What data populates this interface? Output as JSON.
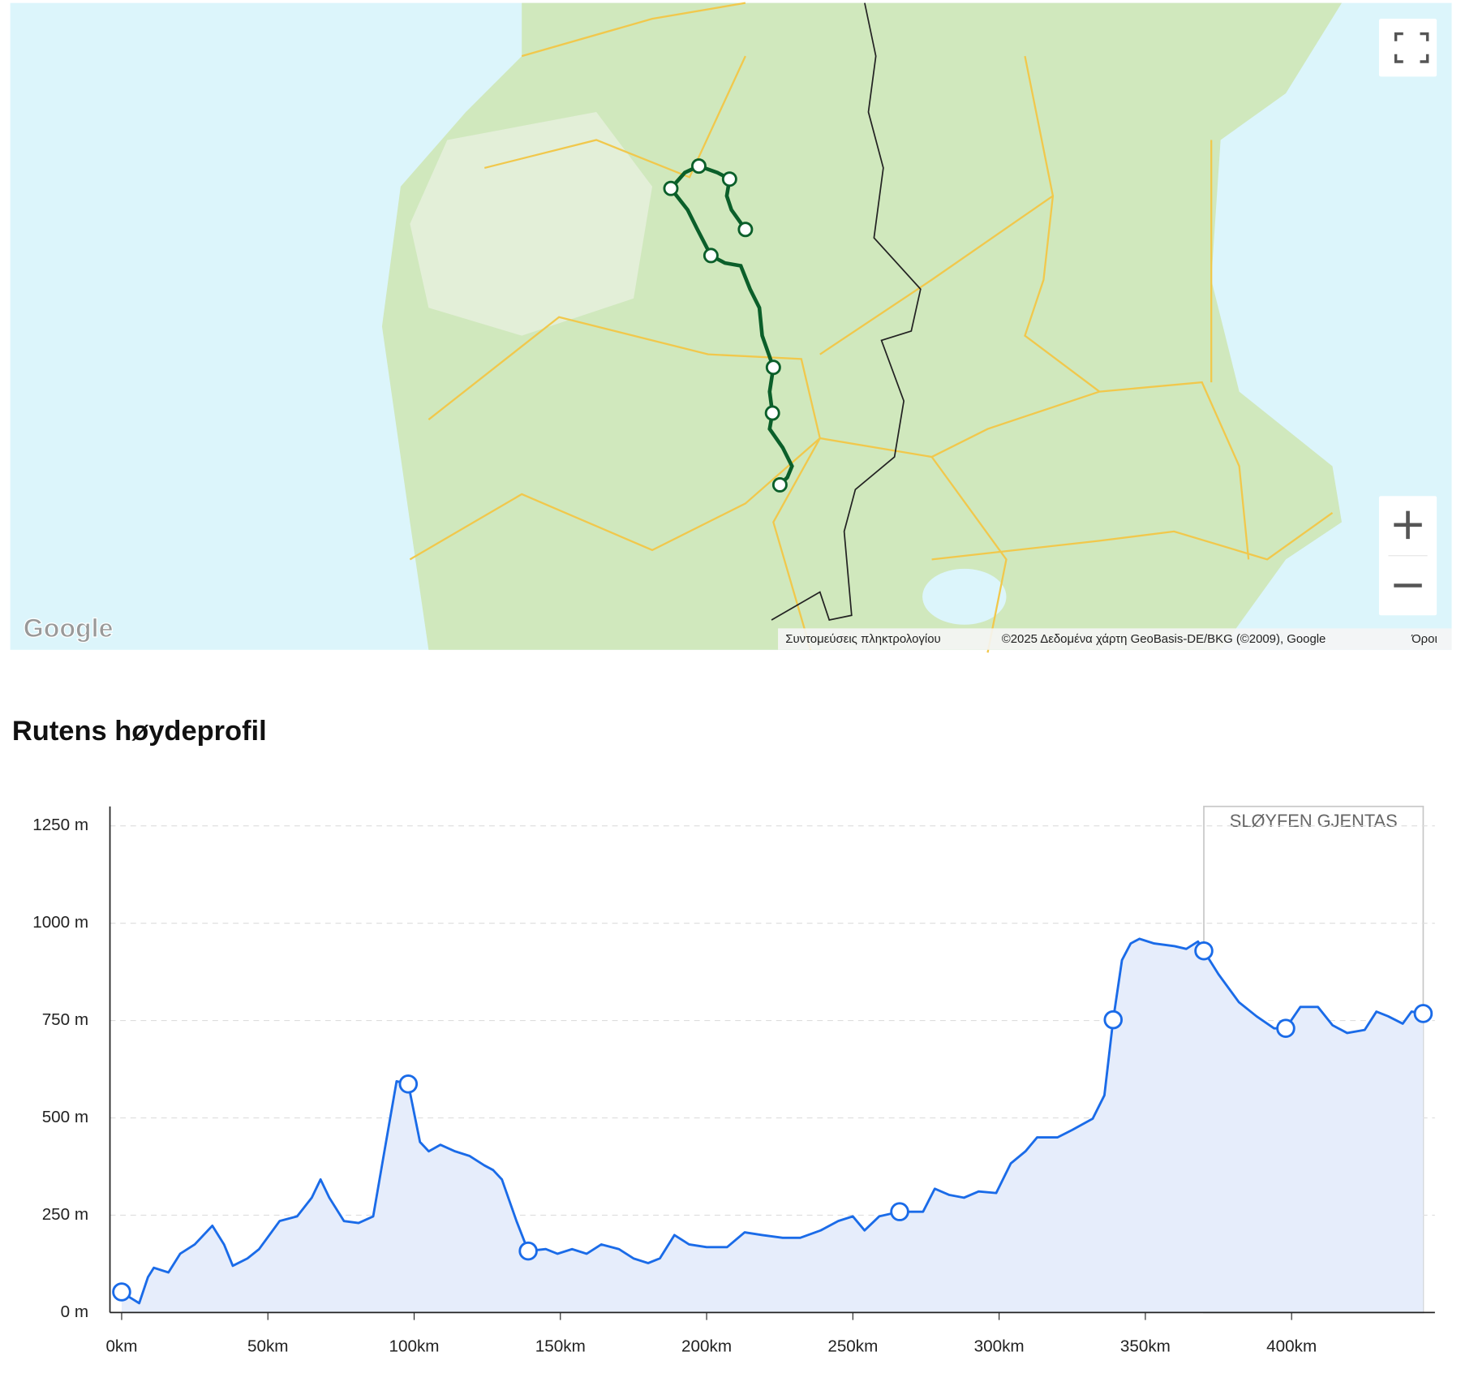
{
  "map": {
    "logo": "Google",
    "shortcuts": "Συντομεύσεις πληκτρολογίου",
    "attribution": "©2025 Δεδομένα χάρτη GeoBasis-DE/BKG (©2009), Google",
    "terms": "Όροι"
  },
  "heading": "Rutens høydeprofil",
  "chart_data": {
    "type": "area",
    "x": [
      0,
      3,
      6,
      9,
      11,
      16,
      20,
      25,
      31,
      35,
      38,
      43,
      47,
      54,
      60,
      65,
      68,
      71,
      76,
      81,
      86,
      89,
      94,
      98,
      102,
      105,
      109,
      114,
      119,
      124,
      127,
      130,
      135,
      139,
      145,
      149,
      154,
      159,
      164,
      170,
      175,
      180,
      184,
      189,
      194,
      200,
      207,
      213,
      219,
      226,
      232,
      239,
      245,
      250,
      254,
      259,
      266,
      274,
      278,
      283,
      288,
      293,
      299,
      304,
      309,
      313,
      320,
      325,
      332,
      336,
      339,
      342,
      345,
      348,
      353,
      360,
      364,
      368,
      370,
      375,
      382,
      388,
      394,
      398,
      403,
      409,
      414,
      419,
      425,
      429,
      433,
      438,
      441,
      445
    ],
    "values": [
      53,
      38,
      24,
      91,
      115,
      103,
      151,
      175,
      223,
      175,
      120,
      139,
      163,
      235,
      247,
      295,
      342,
      295,
      235,
      230,
      247,
      378,
      594,
      587,
      438,
      414,
      431,
      414,
      402,
      378,
      366,
      342,
      235,
      158,
      163,
      151,
      163,
      151,
      175,
      163,
      139,
      127,
      139,
      199,
      175,
      168,
      168,
      206,
      199,
      192,
      192,
      211,
      235,
      247,
      211,
      247,
      259,
      259,
      318,
      302,
      295,
      311,
      307,
      383,
      414,
      450,
      450,
      469,
      498,
      558,
      752,
      905,
      948,
      960,
      948,
      941,
      934,
      953,
      929,
      869,
      797,
      761,
      730,
      730,
      785,
      785,
      738,
      718,
      726,
      773,
      761,
      742,
      773,
      768
    ],
    "waypoint_x": [
      0,
      98,
      139,
      266,
      339,
      370,
      398,
      445
    ],
    "waypoint_values": [
      53,
      587,
      158,
      259,
      752,
      929,
      730,
      768
    ],
    "color": "#1a6be8",
    "fill": "#e6edfb",
    "xlim": [
      -4,
      449
    ],
    "xticks": [
      {
        "value": 0,
        "label": "0km"
      },
      {
        "value": 50,
        "label": "50km"
      },
      {
        "value": 100,
        "label": "100km"
      },
      {
        "value": 150,
        "label": "150km"
      },
      {
        "value": 200,
        "label": "200km"
      },
      {
        "value": 250,
        "label": "250km"
      },
      {
        "value": 300,
        "label": "300km"
      },
      {
        "value": 350,
        "label": "350km"
      },
      {
        "value": 400,
        "label": "400km"
      }
    ],
    "ylim": [
      0,
      1300
    ],
    "yticks": [
      {
        "value": 0,
        "label": "0 m"
      },
      {
        "value": 250,
        "label": "250 m"
      },
      {
        "value": 500,
        "label": "500 m"
      },
      {
        "value": 750,
        "label": "750 m"
      },
      {
        "value": 1000,
        "label": "1000 m"
      },
      {
        "value": 1250,
        "label": "1250 m"
      }
    ],
    "grid": true,
    "loop": {
      "label": "SLØYFEN GJENTAS",
      "x": [
        370,
        445
      ]
    }
  }
}
